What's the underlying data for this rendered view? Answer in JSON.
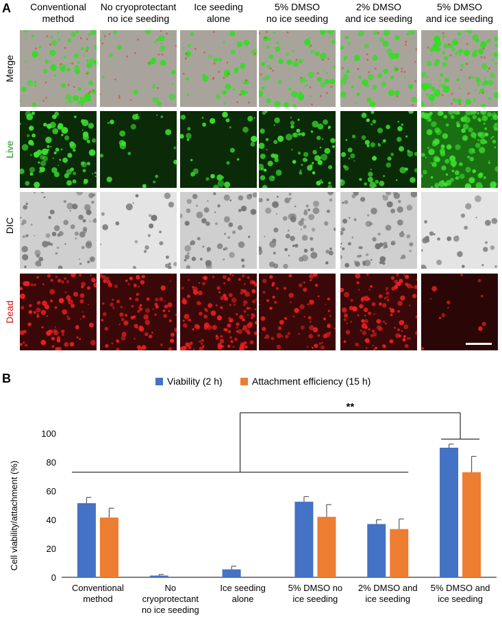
{
  "panels": {
    "a_label": "A",
    "b_label": "B"
  },
  "grid": {
    "columns": [
      "Conventional\nmethod",
      "No cryoprotectant\nno ice seeding",
      "Ice seeding\nalone",
      "5% DMSO\nno ice seeding",
      "2% DMSO\nand ice seeding",
      "5% DMSO\nand ice seeding"
    ],
    "rows": [
      {
        "label": "Merge",
        "color": "#000000"
      },
      {
        "label": "Live",
        "color": "#1a8f1a"
      },
      {
        "label": "DIC",
        "color": "#000000"
      },
      {
        "label": "Dead",
        "color": "#d01010"
      }
    ],
    "brightness": {
      "merge_green": [
        0.55,
        0.05,
        0.12,
        0.45,
        0.35,
        0.95
      ],
      "live": [
        0.55,
        0.05,
        0.12,
        0.45,
        0.35,
        0.95
      ],
      "dic": [
        0.6,
        0.15,
        0.5,
        0.55,
        0.6,
        0.2
      ],
      "dead": [
        0.6,
        0.55,
        0.85,
        0.45,
        0.7,
        0.08
      ]
    },
    "scale_bar_color": "#ffffff"
  },
  "chart_data": {
    "type": "bar",
    "categories": [
      "Conventional\nmethod",
      "No\ncryoprotectant\nno ice seeding",
      "Ice seeding\nalone",
      "5% DMSO no\nice seeding",
      "2% DMSO and\nice seeding",
      "5% DMSO and\nice seeding"
    ],
    "series": [
      {
        "name": "Viability (2 h)",
        "color": "#4472c4",
        "values": [
          51.5,
          1.2,
          5.5,
          52.5,
          37,
          90
        ],
        "errors": [
          4,
          0.8,
          2.2,
          3.5,
          3,
          2.5
        ]
      },
      {
        "name": "Attachment efficiency (15 h)",
        "color": "#ed7d31",
        "values": [
          41.5,
          null,
          null,
          42,
          33.5,
          73
        ],
        "errors": [
          6.5,
          null,
          null,
          8.5,
          7,
          11
        ]
      }
    ],
    "ylabel": "Cell viability/attachment (%)",
    "xlabel": "",
    "ylim": [
      0,
      100
    ],
    "yticks": [
      0,
      20,
      40,
      60,
      80,
      100
    ],
    "grid": false,
    "legend_position": "top",
    "significance": {
      "label": "**",
      "from_groups": [
        0,
        4
      ],
      "to_group": 5
    }
  }
}
